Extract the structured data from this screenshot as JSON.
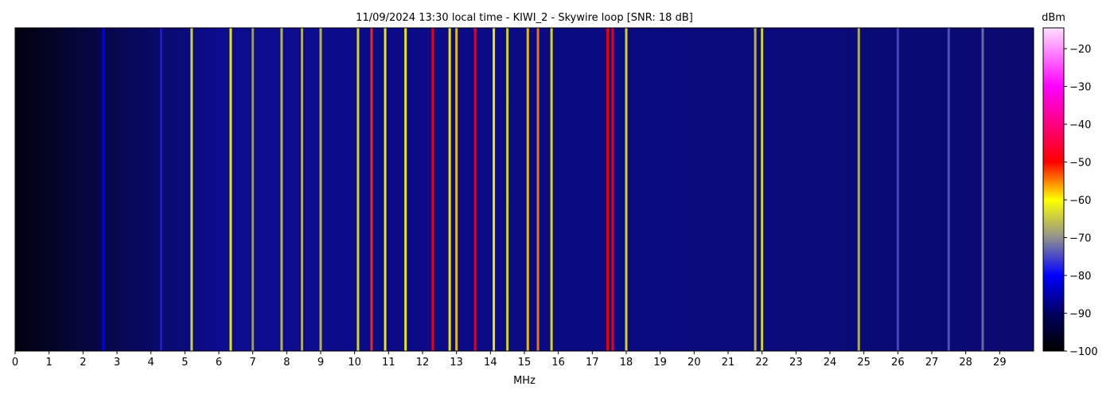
{
  "chart_data": {
    "type": "spectrogram",
    "title": "11/09/2024 13:30 local time - KIWI_2 - Skywire loop [SNR: 18 dB]",
    "x_label": "MHz",
    "xlim": [
      0,
      30
    ],
    "xticks": [
      0,
      1,
      2,
      3,
      4,
      5,
      6,
      7,
      8,
      9,
      10,
      11,
      12,
      13,
      14,
      15,
      16,
      17,
      18,
      19,
      20,
      21,
      22,
      23,
      24,
      25,
      26,
      27,
      28,
      29
    ],
    "x": [
      2.6,
      4.3,
      5.2,
      6.35,
      7.0,
      7.85,
      8.45,
      9.0,
      10.1,
      10.5,
      10.9,
      11.5,
      12.3,
      12.8,
      13.0,
      13.55,
      14.1,
      14.5,
      15.1,
      15.4,
      15.8,
      17.45,
      17.6,
      18.0,
      21.8,
      22.0,
      24.85,
      26.0,
      27.5,
      28.5
    ],
    "values": [
      -80,
      -78,
      -62,
      -60,
      -68,
      -65,
      -66,
      -65,
      -62,
      -52,
      -60,
      -60,
      -50,
      -60,
      -58,
      -48,
      -60,
      -62,
      -58,
      -55,
      -62,
      -50,
      -48,
      -62,
      -65,
      -62,
      -66,
      -75,
      -74,
      -72
    ],
    "colorbar_label": "dBm",
    "clim": [
      -100,
      -14.5
    ],
    "cticks": [
      {
        "value": -20,
        "label": "−20"
      },
      {
        "value": -30,
        "label": "−30"
      },
      {
        "value": -40,
        "label": "−40"
      },
      {
        "value": -50,
        "label": "−50"
      },
      {
        "value": -60,
        "label": "−60"
      },
      {
        "value": -70,
        "label": "−70"
      },
      {
        "value": -80,
        "label": "−80"
      },
      {
        "value": -90,
        "label": "−90"
      },
      {
        "value": -100,
        "label": "−100"
      }
    ],
    "colormap": [
      {
        "value": -100,
        "color": "#000000"
      },
      {
        "value": -90,
        "color": "#000060"
      },
      {
        "value": -80,
        "color": "#0000ff"
      },
      {
        "value": -70,
        "color": "#909090"
      },
      {
        "value": -60,
        "color": "#ffff00"
      },
      {
        "value": -50,
        "color": "#ff0000"
      },
      {
        "value": -30,
        "color": "#ff00ff"
      },
      {
        "value": -14.5,
        "color": "#ffe0ff"
      }
    ]
  }
}
